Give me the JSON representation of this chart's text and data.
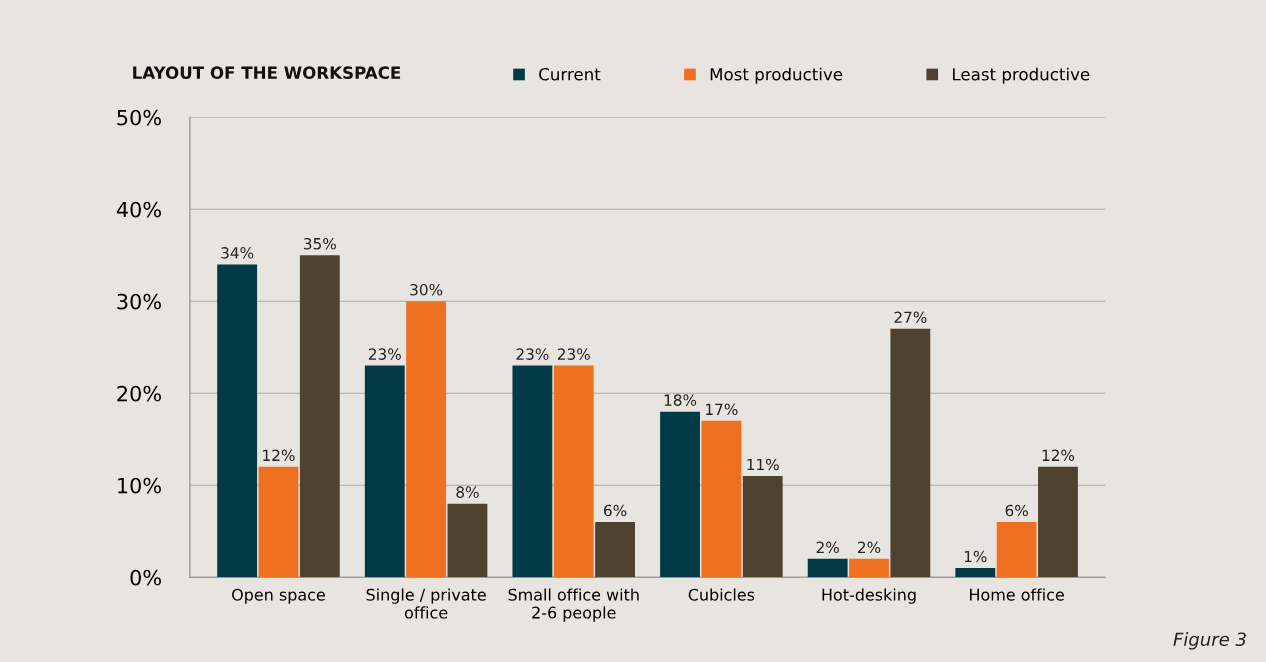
{
  "chart_data": {
    "type": "bar",
    "title": "LAYOUT OF THE WORKSPACE",
    "categories": [
      "Open space",
      "Single / private\noffice",
      "Small office with\n2-6 people",
      "Cubicles",
      "Hot-desking",
      "Home office"
    ],
    "series": [
      {
        "name": "Current",
        "color": "#003b46",
        "values": [
          34,
          23,
          23,
          18,
          2,
          1
        ],
        "value_labels": [
          "34%",
          "23%",
          "23%",
          "18%",
          "2%",
          "1%"
        ]
      },
      {
        "name": "Most productive",
        "color": "#f07022",
        "values": [
          12,
          30,
          23,
          17,
          2,
          6
        ],
        "value_labels": [
          "12%",
          "30%",
          "23%",
          "17%",
          "2%",
          "6%"
        ]
      },
      {
        "name": "Least productive",
        "color": "#4f4330",
        "values": [
          35,
          8,
          6,
          11,
          27,
          12
        ],
        "value_labels": [
          "35%",
          "8%",
          "6%",
          "11%",
          "27%",
          "12%"
        ]
      }
    ],
    "ylim": [
      0,
      50
    ],
    "yticks": [
      {
        "value": 0,
        "label": "0%"
      },
      {
        "value": 10,
        "label": "10%"
      },
      {
        "value": 20,
        "label": "20%"
      },
      {
        "value": 30,
        "label": "30%"
      },
      {
        "value": 40,
        "label": "40%"
      },
      {
        "value": 50,
        "label": "50%"
      }
    ],
    "grid": "y",
    "legend": "top right",
    "annotations": [
      "Figure 3"
    ]
  }
}
